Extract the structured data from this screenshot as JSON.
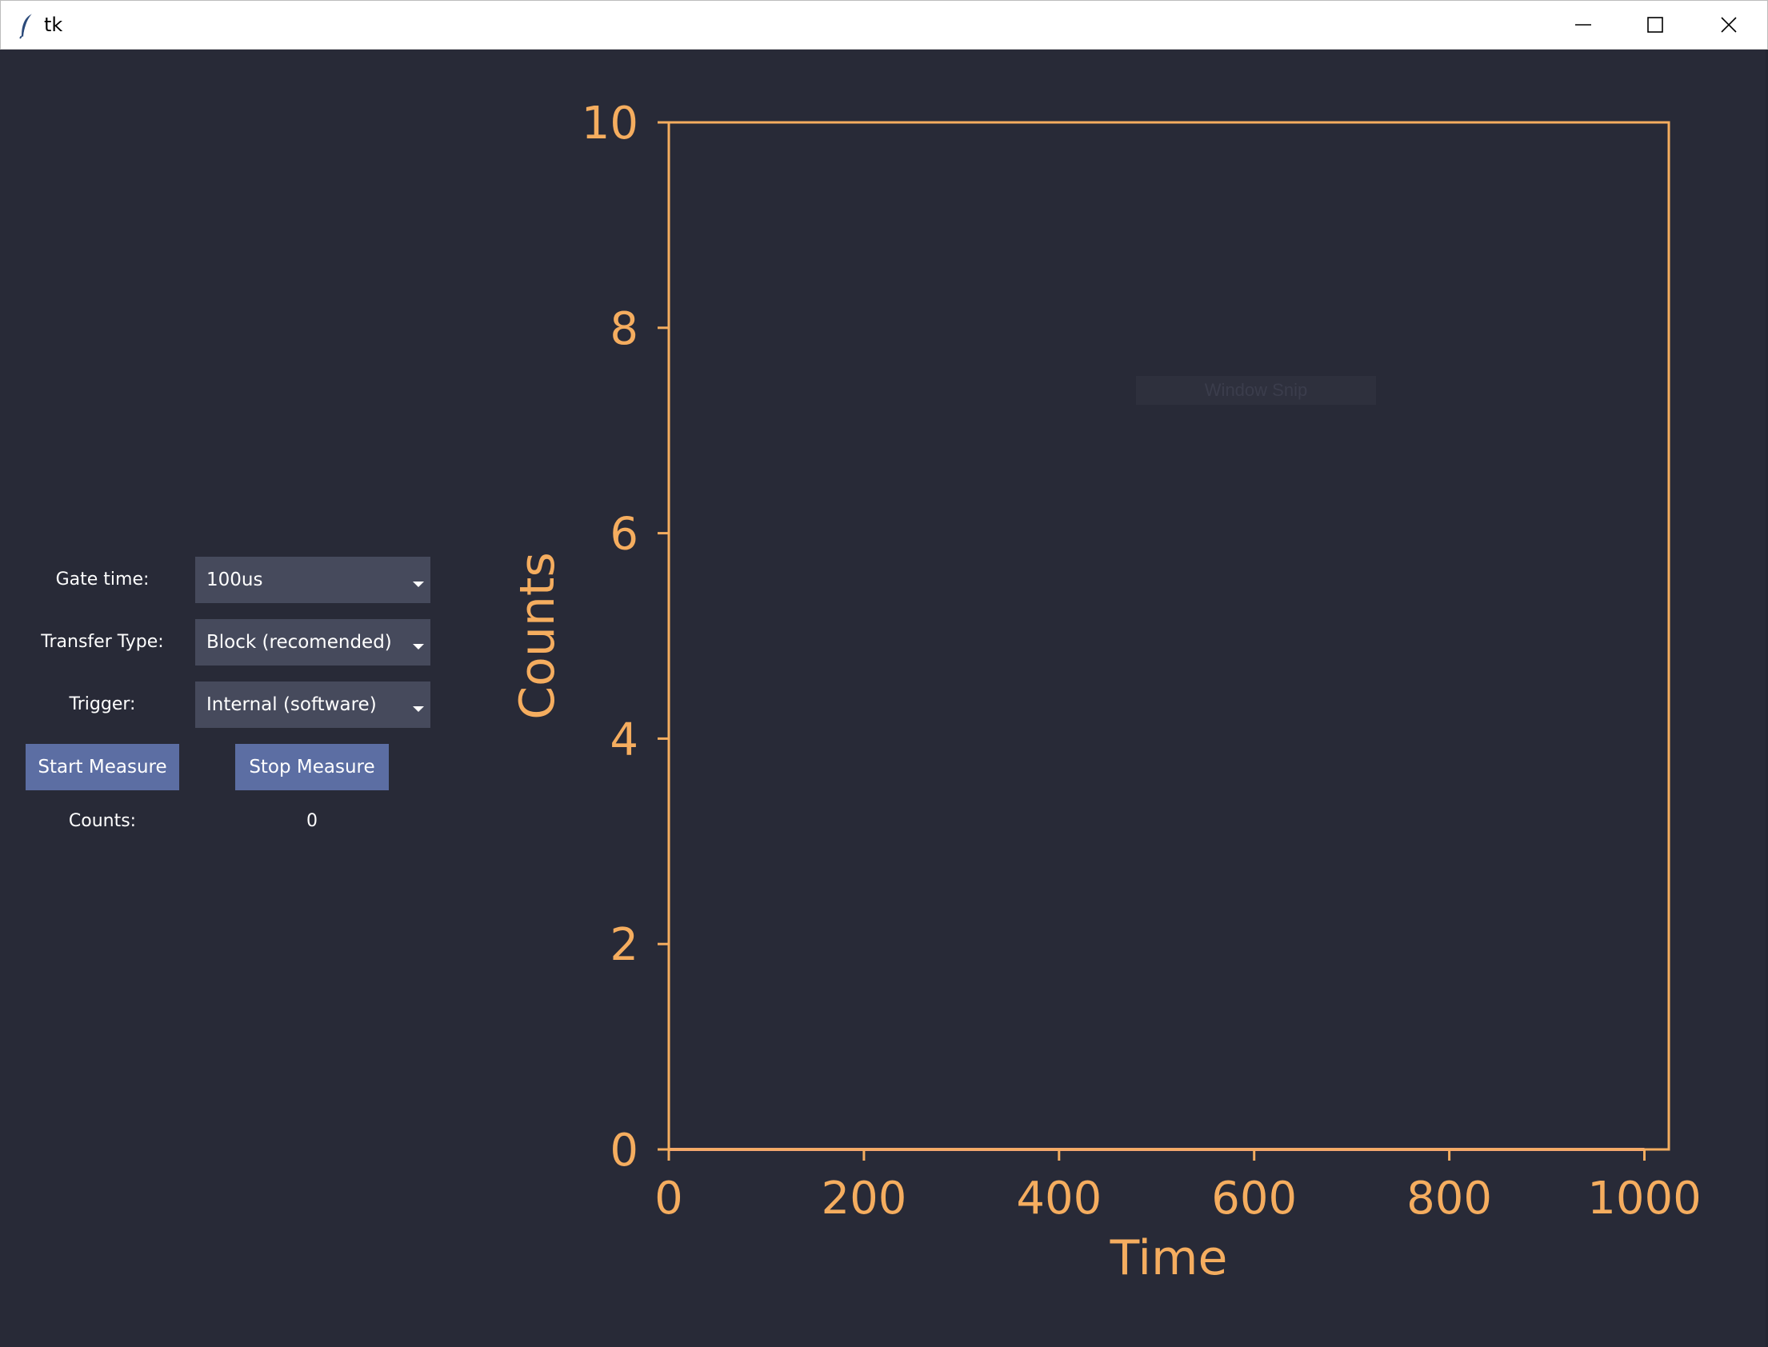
{
  "window": {
    "title": "tk"
  },
  "titlebar": {
    "icons": [
      "feather-icon",
      "minimize-icon",
      "maximize-icon",
      "close-icon"
    ]
  },
  "controls": {
    "gate_time": {
      "label": "Gate time:",
      "value": "100us"
    },
    "transfer_type": {
      "label": "Transfer Type:",
      "value": "Block (recomended)"
    },
    "trigger": {
      "label": "Trigger:",
      "value": "Internal (software)"
    },
    "start_label": "Start Measure",
    "stop_label": "Stop Measure",
    "counts": {
      "label": "Counts:",
      "value": "0"
    }
  },
  "overlay": {
    "text": "Window Snip"
  },
  "colors": {
    "background": "#282a37",
    "accent": "#f5ad5f",
    "button": "#5c6ea3",
    "combo": "#464a5c",
    "series": "#f09a8a"
  },
  "chart_data": {
    "type": "line",
    "xlabel": "Time",
    "ylabel": "Counts",
    "xlim": [
      0,
      1025
    ],
    "ylim": [
      0,
      10
    ],
    "xticks": [
      0,
      200,
      400,
      600,
      800,
      1000
    ],
    "yticks": [
      0,
      2,
      4,
      6,
      8,
      10
    ],
    "grid": false,
    "series": [
      {
        "x": [
          0,
          1000
        ],
        "y": [
          0,
          0
        ]
      }
    ]
  }
}
